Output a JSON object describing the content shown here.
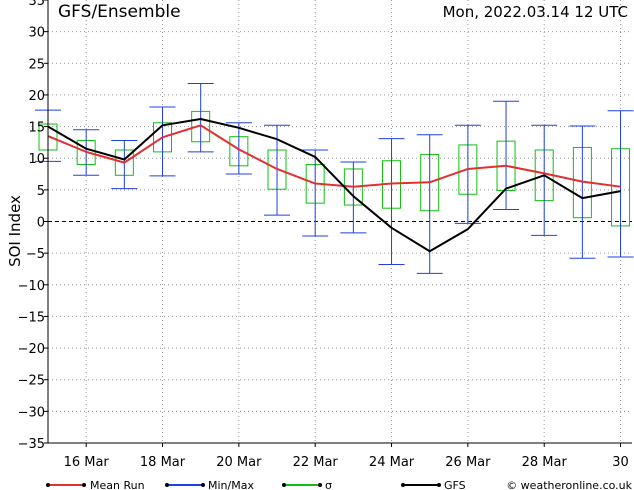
{
  "header": {
    "title": "GFS/Ensemble",
    "run_info": "Mon, 2022.03.14   12 UTC"
  },
  "footer": {
    "legend": [
      {
        "label": "Mean Run",
        "color": "#e03030",
        "kind": "line"
      },
      {
        "label": "Min/Max",
        "color": "#2040e0",
        "kind": "line"
      },
      {
        "label": "σ",
        "color": "#10c010",
        "kind": "box"
      },
      {
        "label": "GFS",
        "color": "#000000",
        "kind": "line"
      }
    ],
    "credit": "© weatheronline.co.uk"
  },
  "chart_data": {
    "type": "line",
    "ylabel": "SOI Index",
    "ylim": [
      -35,
      35
    ],
    "yticks": [
      35,
      30,
      25,
      20,
      15,
      10,
      5,
      0,
      -5,
      -10,
      -15,
      -20,
      -25,
      -30,
      -35
    ],
    "xlim": [
      15,
      30.3
    ],
    "xticks": [
      {
        "day": 16,
        "label": "16 Mar"
      },
      {
        "day": 18,
        "label": "18 Mar"
      },
      {
        "day": 20,
        "label": "20 Mar"
      },
      {
        "day": 22,
        "label": "22 Mar"
      },
      {
        "day": 24,
        "label": "24 Mar"
      },
      {
        "day": 26,
        "label": "26 Mar"
      },
      {
        "day": 28,
        "label": "28 Mar"
      },
      {
        "day": 30,
        "label": "30"
      }
    ],
    "grid": true,
    "colors": {
      "mean": "#e03030",
      "minmax": "#2040e0",
      "sigma": "#10c010",
      "gfs": "#000000"
    },
    "x": [
      15.0,
      16.0,
      17.0,
      18.0,
      19.0,
      20.0,
      21.0,
      22.0,
      23.0,
      24.0,
      25.0,
      26.0,
      27.0,
      28.0,
      29.0,
      30.0
    ],
    "series": [
      {
        "name": "Mean Run",
        "values": [
          13.5,
          11.0,
          9.3,
          13.3,
          15.2,
          11.4,
          8.3,
          6.0,
          5.5,
          6.0,
          6.2,
          8.3,
          8.8,
          7.6,
          6.3,
          5.5
        ]
      },
      {
        "name": "GFS",
        "values": [
          15.0,
          11.5,
          9.8,
          15.2,
          16.2,
          14.8,
          13.0,
          10.2,
          4.0,
          -1.0,
          -4.7,
          -1.2,
          5.2,
          7.3,
          3.7,
          4.8
        ]
      },
      {
        "name": "Min/Max",
        "min": [
          9.5,
          7.3,
          5.2,
          7.2,
          11.0,
          7.5,
          1.0,
          -2.3,
          -1.8,
          -6.8,
          -8.2,
          -0.3,
          1.9,
          -2.2,
          -5.8,
          -5.6
        ],
        "max": [
          17.6,
          14.5,
          12.8,
          18.1,
          21.8,
          15.6,
          15.2,
          11.3,
          9.4,
          13.1,
          13.7,
          15.2,
          19.0,
          15.2,
          15.1,
          17.5
        ]
      },
      {
        "name": "σ",
        "low": [
          11.3,
          9.0,
          7.3,
          11.0,
          12.6,
          8.8,
          5.1,
          2.9,
          2.6,
          2.1,
          1.7,
          4.3,
          4.9,
          3.3,
          0.6,
          -0.7
        ],
        "high": [
          15.4,
          12.8,
          11.3,
          15.6,
          17.4,
          13.4,
          11.3,
          9.0,
          8.3,
          9.6,
          10.6,
          12.1,
          12.7,
          11.3,
          11.7,
          11.5
        ]
      }
    ]
  }
}
